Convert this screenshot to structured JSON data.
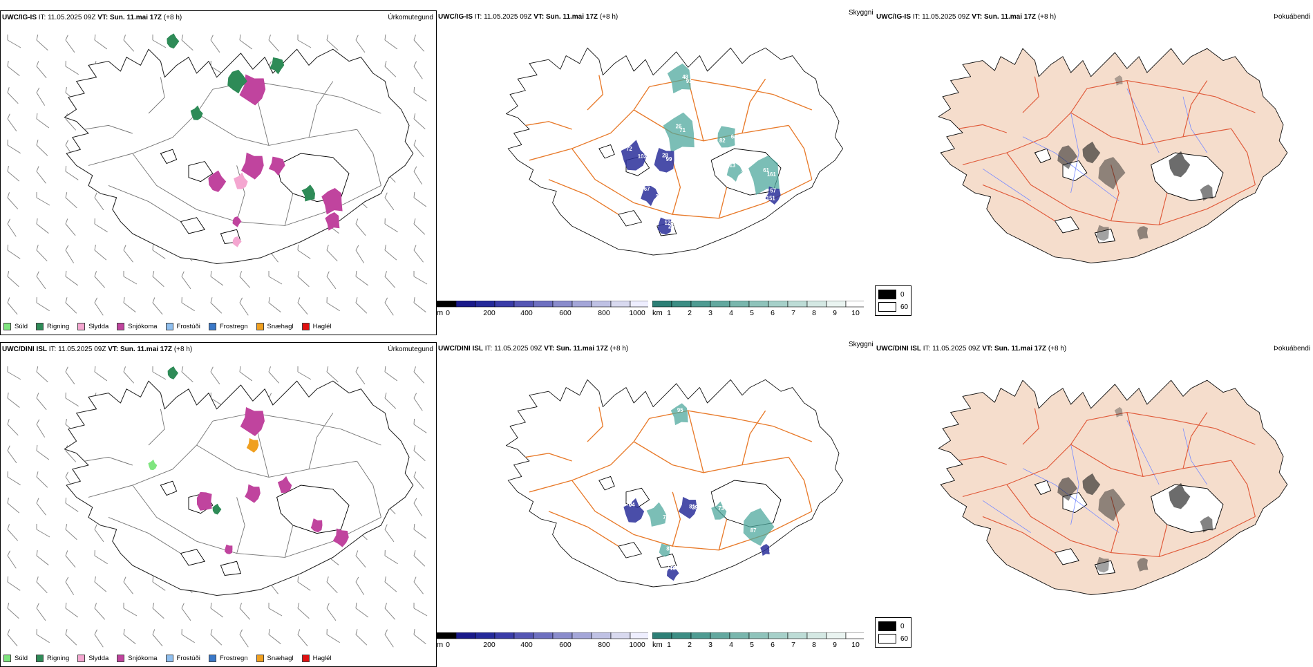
{
  "rows": [
    {
      "model": "UWC/IG-IS",
      "it": "IT: 11.05.2025 09Z",
      "vt_label": "VT:",
      "vt": "Sun. 11.mai 17Z",
      "lead": "(+8 h)",
      "panels": {
        "precip": "Úrkomutegund",
        "vis": "Skyggni",
        "fog": "Þokuábendi"
      }
    },
    {
      "model": "UWC/DINI ISL",
      "it": "IT: 11.05.2025 09Z",
      "vt_label": "VT:",
      "vt": "Sun. 11.mai 17Z",
      "lead": "(+8 h)",
      "panels": {
        "precip": "Úrkomutegund",
        "vis": "Skyggni",
        "fog": "Þokuábendi"
      }
    }
  ],
  "precip_legend": [
    {
      "label": "Súld",
      "color": "#7fe57f"
    },
    {
      "label": "Rigning",
      "color": "#2e8b57"
    },
    {
      "label": "Slydda",
      "color": "#f4a6d0"
    },
    {
      "label": "Snjókoma",
      "color": "#c0449e"
    },
    {
      "label": "Frostúði",
      "color": "#8fbfef"
    },
    {
      "label": "Frostregn",
      "color": "#3a78c8"
    },
    {
      "label": "Snæhagl",
      "color": "#f0a020"
    },
    {
      "label": "Haglél",
      "color": "#e01010"
    }
  ],
  "cbar_m": {
    "unit": "m",
    "ticks": [
      "0",
      "200",
      "400",
      "600",
      "800",
      "1000"
    ]
  },
  "cbar_km": {
    "unit": "km",
    "ticks": [
      "1",
      "2",
      "3",
      "4",
      "5",
      "6",
      "7",
      "8",
      "9",
      "10"
    ]
  },
  "fog_legend": [
    "0",
    "60"
  ],
  "vis_labels_top": [
    "72",
    "99",
    "67",
    "25",
    "57",
    "91",
    "71",
    "82",
    "161",
    "13",
    "103",
    "28",
    "20",
    "120",
    "151",
    "48",
    "26",
    "64",
    "61",
    "39"
  ],
  "vis_labels_bottom": [
    "78",
    "81",
    "122",
    "227",
    "95",
    "77",
    "73",
    "87",
    "856",
    "04",
    "39",
    "105"
  ],
  "colors": {
    "road": "#e87a2a",
    "river": "#7a8cff",
    "land": "#f5ddcc",
    "coast": "#000000"
  }
}
